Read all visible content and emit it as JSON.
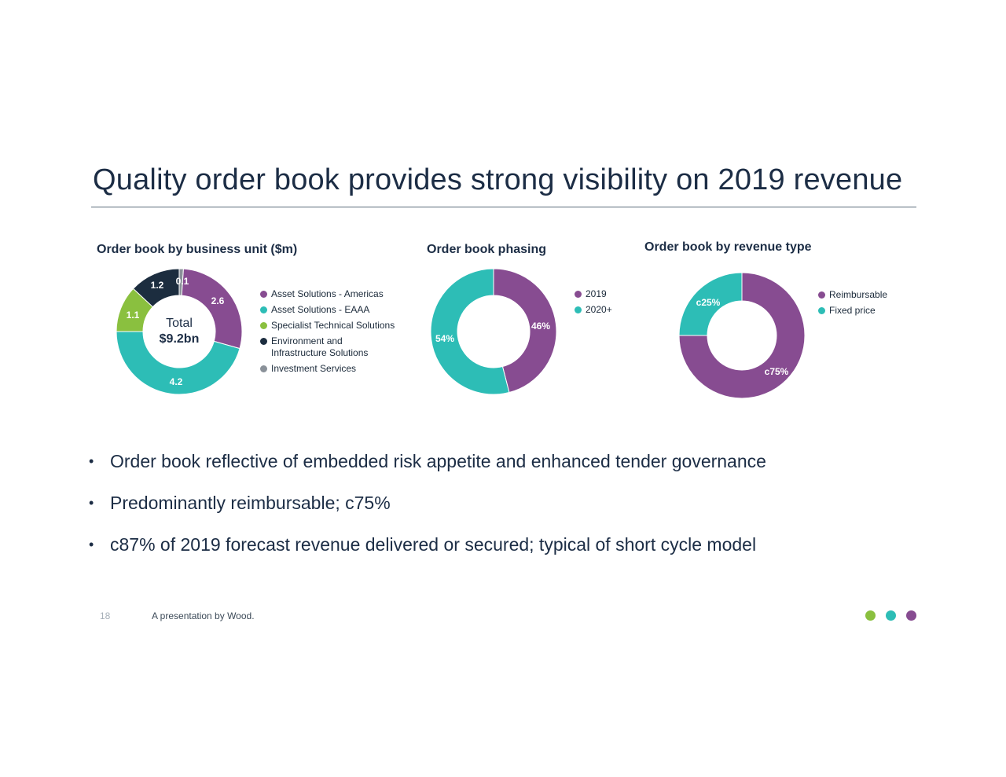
{
  "title": "Quality order book provides strong visibility on 2019 revenue",
  "colors": {
    "purple": "#874c91",
    "teal": "#2dbdb6",
    "green": "#8ac03f",
    "navy": "#1c2d3f",
    "grey": "#8a9199"
  },
  "chart_data": [
    {
      "type": "pie",
      "title": "Order book by business unit ($m)",
      "center_total": "Total",
      "center_value": "$9.2bn",
      "slices": [
        {
          "name": "Investment Services",
          "value": 0.1,
          "label": "0.1",
          "color": "#8a9199"
        },
        {
          "name": "Asset Solutions - Americas",
          "value": 2.6,
          "label": "2.6",
          "color": "#874c91"
        },
        {
          "name": "Asset Solutions - EAAA",
          "value": 4.2,
          "label": "4.2",
          "color": "#2dbdb6"
        },
        {
          "name": "Specialist Technical Solutions",
          "value": 1.1,
          "label": "1.1",
          "color": "#8ac03f"
        },
        {
          "name": "Environment and Infrastructure Solutions",
          "value": 1.2,
          "label": "1.2",
          "color": "#1c2d3f"
        }
      ],
      "legend": [
        {
          "label": "Asset Solutions - Americas",
          "color": "#874c91"
        },
        {
          "label": "Asset Solutions - EAAA",
          "color": "#2dbdb6"
        },
        {
          "label": "Specialist Technical Solutions",
          "color": "#8ac03f"
        },
        {
          "label": "Environment and",
          "label2": "Infrastructure Solutions",
          "color": "#1c2d3f"
        },
        {
          "label": "Investment Services",
          "color": "#8a9199"
        }
      ],
      "legend_placement": "right"
    },
    {
      "type": "pie",
      "title": "Order book phasing",
      "slices": [
        {
          "name": "2019",
          "value": 46,
          "label": "46%",
          "color": "#874c91"
        },
        {
          "name": "2020+",
          "value": 54,
          "label": "54%",
          "color": "#2dbdb6"
        }
      ],
      "legend": [
        {
          "label": "2019",
          "color": "#874c91"
        },
        {
          "label": "2020+",
          "color": "#2dbdb6"
        }
      ],
      "legend_placement": "right"
    },
    {
      "type": "pie",
      "title": "Order book by revenue type",
      "slices": [
        {
          "name": "Reimbursable",
          "value": 75,
          "label": "c75%",
          "color": "#874c91"
        },
        {
          "name": "Fixed price",
          "value": 25,
          "label": "c25%",
          "color": "#2dbdb6"
        }
      ],
      "legend": [
        {
          "label": "Reimbursable",
          "color": "#874c91"
        },
        {
          "label": "Fixed price",
          "color": "#2dbdb6"
        }
      ],
      "legend_placement": "right"
    }
  ],
  "bullets": [
    "Order book reflective of embedded risk appetite and enhanced tender governance",
    "Predominantly reimbursable; c75%",
    "c87% of 2019 forecast revenue delivered or secured; typical of short cycle model"
  ],
  "bullet_symbol": "•",
  "footer": {
    "page_number": "18",
    "text": "A presentation by Wood.",
    "dots": [
      "#8ac03f",
      "#2dbdb6",
      "#874c91"
    ]
  }
}
